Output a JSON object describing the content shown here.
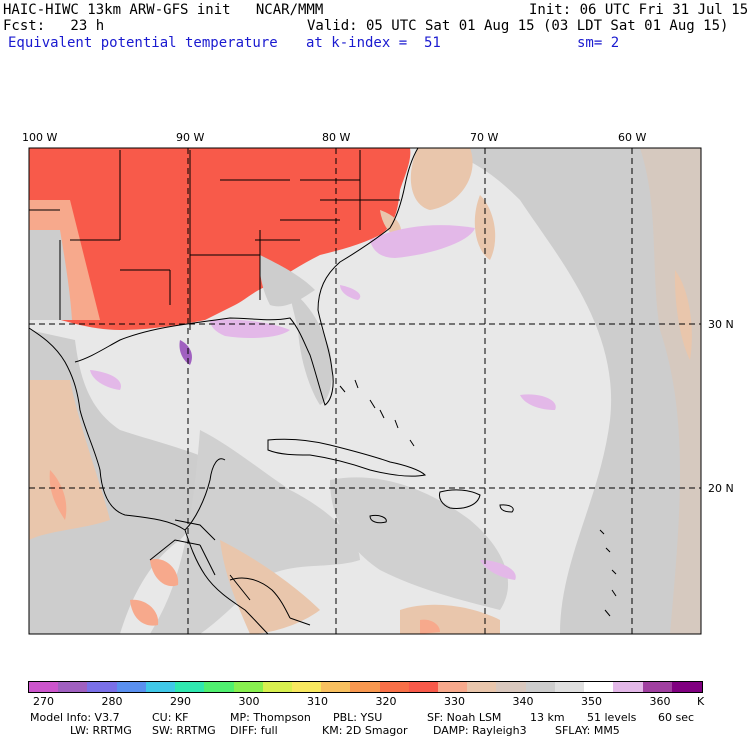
{
  "header": {
    "title": "HAIC-HIWC 13km ARW-GFS init   NCAR/MMM",
    "init": "Init: 06 UTC Fri 31 Jul 15",
    "fcst": "Fcst:   23 h",
    "valid": "Valid: 05 UTC Sat 01 Aug 15 (03 LDT Sat 01 Aug 15)",
    "field": "Equivalent potential temperature",
    "level": "at k-index =  51",
    "smooth": "sm= 2"
  },
  "map": {
    "lon_labels": [
      "100 W",
      "90 W",
      "80 W",
      "70 W",
      "60 W"
    ],
    "lat_labels": [
      "30 N",
      "20 N"
    ],
    "colors": {
      "hot": "#f85a4a",
      "warm": "#f7a98c",
      "tan": "#e9c6ac",
      "gray": "#cdcdcd",
      "light": "#e8e8e8",
      "lav": "#e3b8e8",
      "coast": "#000000"
    }
  },
  "colorbar": {
    "colors": [
      "#cc55cc",
      "#a060c0",
      "#7a70e8",
      "#5a90f0",
      "#40c8e8",
      "#30e8b0",
      "#50f070",
      "#88f050",
      "#d8f050",
      "#f8e860",
      "#f8c060",
      "#f89850",
      "#f87048",
      "#f85a4a",
      "#f7a98c",
      "#e9c6ac",
      "#d9c8be",
      "#cdcdcd",
      "#e0e0e0",
      "#ffffff",
      "#e3b8e8",
      "#a040a0",
      "#800080"
    ],
    "labels": [
      "270",
      "280",
      "290",
      "300",
      "310",
      "320",
      "330",
      "340",
      "350",
      "360"
    ],
    "unit": "K"
  },
  "model_info": {
    "line1": [
      "Model Info: V3.7",
      "CU: KF",
      "MP: Thompson",
      "PBL: YSU",
      "SF: Noah LSM",
      "13 km",
      "51 levels",
      "60 sec"
    ],
    "line2": [
      "LW: RRTMG",
      "SW: RRTMG",
      "DIFF: full",
      "KM: 2D Smagor",
      "DAMP: Rayleigh3",
      "SFLAY: MM5"
    ]
  }
}
